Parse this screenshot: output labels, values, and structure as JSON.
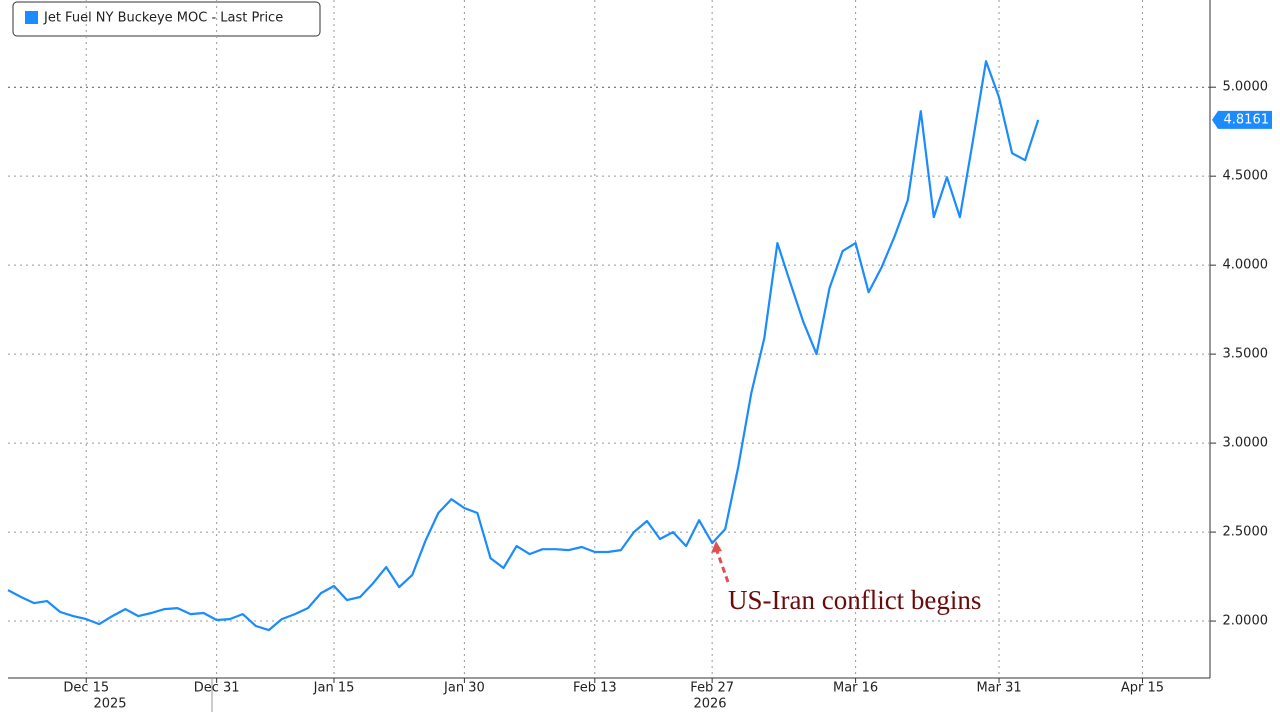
{
  "chart_data": {
    "type": "line",
    "legend_label": "Jet Fuel NY Buckeye MOC - Last Price",
    "annotation": "US-Iran conflict begins",
    "categories": [
      null,
      null,
      null,
      null,
      null,
      null,
      "Dec 15",
      null,
      null,
      null,
      null,
      null,
      null,
      null,
      null,
      null,
      "Dec 31",
      null,
      null,
      null,
      null,
      null,
      null,
      null,
      null,
      "Jan 15",
      null,
      null,
      null,
      null,
      null,
      null,
      null,
      null,
      null,
      "Jan 30",
      null,
      null,
      null,
      null,
      null,
      null,
      null,
      null,
      null,
      "Feb 13",
      null,
      null,
      null,
      null,
      null,
      null,
      null,
      null,
      "Feb 27",
      null,
      null,
      null,
      null,
      null,
      null,
      null,
      null,
      null,
      null,
      "Mar 16",
      null,
      null,
      null,
      null,
      null,
      null,
      null,
      null,
      null,
      null,
      "Mar 31",
      null,
      null,
      null,
      null,
      null,
      null,
      null,
      null,
      null,
      null,
      "Apr 15",
      null,
      null,
      null,
      null,
      null
    ],
    "x_group_labels": [
      "2025",
      "2026"
    ],
    "series": [
      {
        "name": "Jet Fuel NY Buckeye MOC - Last Price",
        "color": "#1a8cff",
        "values": [
          2.174,
          2.135,
          2.101,
          2.112,
          2.051,
          2.028,
          2.011,
          1.983,
          2.028,
          2.067,
          2.028,
          2.045,
          2.067,
          2.073,
          2.039,
          2.045,
          2.006,
          2.011,
          2.039,
          1.972,
          1.949,
          2.011,
          2.039,
          2.073,
          2.157,
          2.197,
          2.118,
          2.135,
          2.213,
          2.303,
          2.191,
          2.258,
          2.449,
          2.607,
          2.685,
          2.635,
          2.607,
          2.354,
          2.298,
          2.421,
          2.376,
          2.404,
          2.404,
          2.399,
          2.416,
          2.388,
          2.388,
          2.399,
          2.5,
          2.562,
          2.461,
          2.5,
          2.421,
          2.567,
          2.438,
          2.517,
          2.865,
          3.281,
          3.59,
          4.124,
          3.899,
          3.68,
          3.5,
          3.871,
          4.079,
          4.124,
          3.848,
          3.989,
          4.163,
          4.365,
          4.865,
          4.27,
          4.494,
          4.27,
          4.702,
          5.146,
          4.944,
          4.629,
          4.59,
          4.8161,
          null,
          null,
          null,
          null,
          null,
          null,
          null,
          null,
          null,
          null,
          null,
          null,
          null
        ]
      }
    ],
    "ylim": [
      1.68,
      5.49
    ],
    "yticks": [
      {
        "value": 2,
        "label": "2.0000"
      },
      {
        "value": 2.5,
        "label": "2.5000"
      },
      {
        "value": 3,
        "label": "3.0000"
      },
      {
        "value": 3.5,
        "label": "3.5000"
      },
      {
        "value": 4,
        "label": "4.0000"
      },
      {
        "value": 4.5,
        "label": "4.5000"
      },
      {
        "value": 5,
        "label": "5.0000"
      }
    ],
    "grid": true
  }
}
